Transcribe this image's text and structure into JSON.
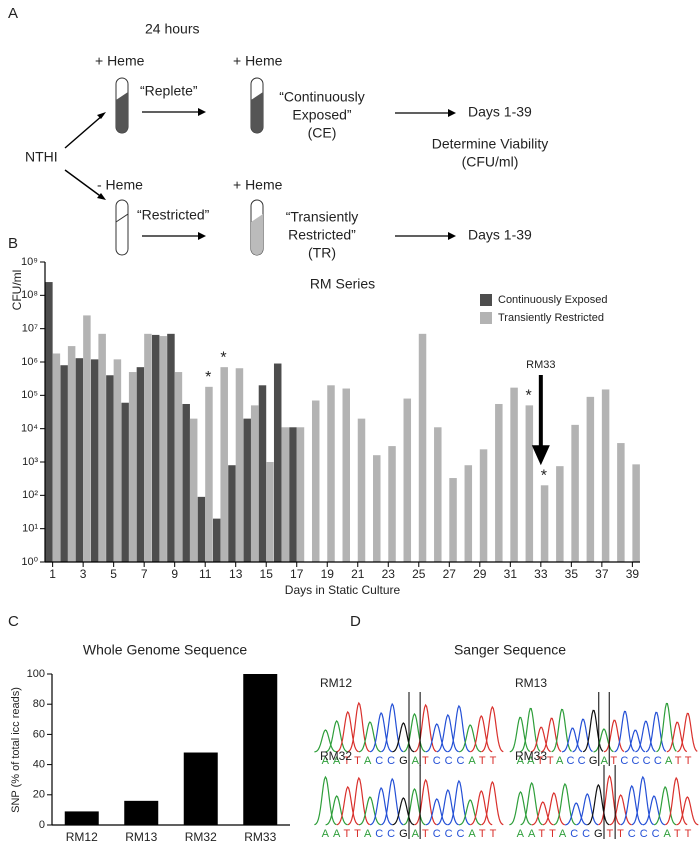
{
  "panel_labels": [
    "A",
    "B",
    "C",
    "D"
  ],
  "diagram": {
    "time": "24 hours",
    "source": "NTHI",
    "top": {
      "start": "+ Heme",
      "step": "“Replete”",
      "end": "+ Heme",
      "group": [
        "“Continuously",
        "Exposed”",
        "(CE)"
      ],
      "days": "Days 1-39"
    },
    "bottom": {
      "start": "- Heme",
      "step": "“Restricted”",
      "end": "+ Heme",
      "group": [
        "“Transiently",
        "Restricted”",
        "(TR)"
      ],
      "days": "Days 1-39"
    },
    "measure": [
      "Determine Viability",
      "(CFU/ml)"
    ]
  },
  "chart_data": [
    {
      "type": "bar",
      "title": "RM Series",
      "x_label": "Days in Static Culture",
      "y_label": "CFU/ml",
      "log_scale": true,
      "x": [
        1,
        2,
        3,
        4,
        5,
        6,
        7,
        8,
        9,
        10,
        11,
        12,
        13,
        14,
        15,
        16,
        17,
        18,
        19,
        20,
        21,
        22,
        23,
        24,
        25,
        26,
        27,
        28,
        29,
        30,
        31,
        32,
        33,
        34,
        35,
        36,
        37,
        38,
        39
      ],
      "xlim": [
        0.5,
        39.5
      ],
      "xticks": [
        1,
        3,
        5,
        7,
        9,
        11,
        13,
        15,
        17,
        19,
        21,
        23,
        25,
        27,
        29,
        31,
        33,
        35,
        37,
        39
      ],
      "ylim": [
        1,
        1000000000
      ],
      "yticks": [
        {
          "value": 1,
          "label": "10⁰"
        },
        {
          "value": 10,
          "label": "10¹"
        },
        {
          "value": 100,
          "label": "10²"
        },
        {
          "value": 1000,
          "label": "10³"
        },
        {
          "value": 10000,
          "label": "10⁴"
        },
        {
          "value": 100000,
          "label": "10⁵"
        },
        {
          "value": 1000000,
          "label": "10⁶"
        },
        {
          "value": 10000000,
          "label": "10⁷"
        },
        {
          "value": 100000000,
          "label": "10⁸"
        },
        {
          "value": 1000000000,
          "label": "10⁹"
        }
      ],
      "legend": "upper right",
      "series": [
        {
          "name": "Continuously Exposed",
          "color": "#4d4d4d",
          "values": [
            250000000,
            800000,
            1300000,
            1200000,
            400000,
            60000,
            700000,
            6500000,
            7000000,
            55000,
            90,
            20,
            800,
            20000,
            200000,
            900000,
            11000,
            null,
            null,
            null,
            null,
            null,
            null,
            null,
            null,
            null,
            null,
            null,
            null,
            null,
            null,
            null,
            null,
            null,
            null,
            null,
            null,
            null,
            null
          ]
        },
        {
          "name": "Transiently Restricted",
          "color": "#b3b3b3",
          "values": [
            1800000,
            3000000,
            25000000,
            7000000,
            1200000,
            500000,
            7000000,
            6000000,
            500000,
            20000,
            180000,
            700000,
            650000,
            50000,
            1000,
            11000,
            11000,
            70000,
            200000,
            160000,
            20000,
            1600,
            3000,
            80000,
            7000000,
            11000,
            330,
            800,
            2400,
            55000,
            170000,
            50000,
            200,
            750,
            13000,
            90000,
            150000,
            3700,
            850
          ]
        }
      ],
      "annotations": [
        {
          "text": "*",
          "x": 11
        },
        {
          "text": "*",
          "x": 12
        },
        {
          "text": "*",
          "x": 32
        },
        {
          "text": "*",
          "x": 33
        },
        {
          "text": "RM33",
          "x": 33,
          "arrow": true
        }
      ]
    },
    {
      "type": "bar",
      "title": "Whole Genome Sequence",
      "y_label": "SNP (% of total icc reads)",
      "categories": [
        "RM12",
        "RM13",
        "RM32",
        "RM33"
      ],
      "values": [
        9,
        16,
        48,
        100
      ],
      "color": "#000000",
      "ylim": [
        0,
        100
      ],
      "yticks": [
        0,
        20,
        40,
        60,
        80,
        100
      ]
    }
  ],
  "sanger": {
    "title": "Sanger Sequence",
    "traces": [
      {
        "name": "RM12",
        "bases": "AATTACCGATCCCATT"
      },
      {
        "name": "RM13",
        "bases": "AATTACCGATCCCCATT"
      },
      {
        "name": "RM32",
        "bases": "AATTACCGATCCCATT"
      },
      {
        "name": "RM33",
        "bases": "AATTACCGTTCCCATT"
      }
    ]
  }
}
